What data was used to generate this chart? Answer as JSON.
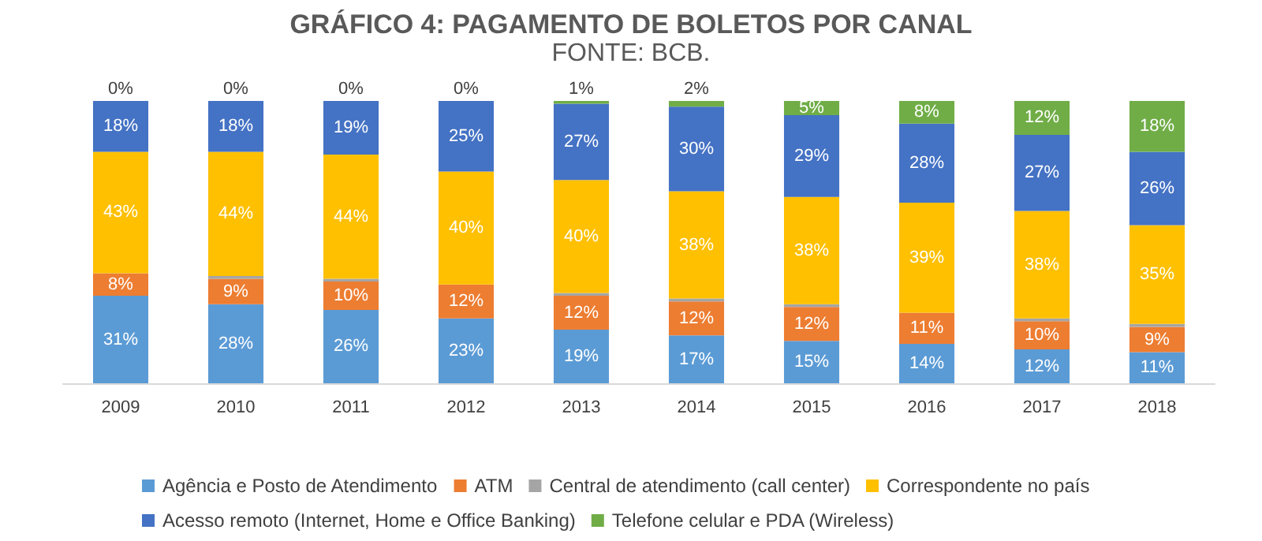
{
  "chart_data": {
    "type": "bar",
    "stacked": true,
    "title": "GRÁFICO 4: PAGAMENTO DE BOLETOS POR CANAL",
    "subtitle": "FONTE: BCB.",
    "categories": [
      "2009",
      "2010",
      "2011",
      "2012",
      "2013",
      "2014",
      "2015",
      "2016",
      "2017",
      "2018"
    ],
    "ylim": [
      0,
      100
    ],
    "tick_labels": "x",
    "grid": false,
    "legend": "bottom",
    "series": [
      {
        "name": "Agência e Posto de Atendimento",
        "color": "#5b9bd5",
        "values": [
          31,
          28,
          26,
          23,
          19,
          17,
          15,
          14,
          12,
          11
        ],
        "value_labels": [
          "31%",
          "28%",
          "26%",
          "23%",
          "19%",
          "17%",
          "15%",
          "14%",
          "12%",
          "11%"
        ]
      },
      {
        "name": "ATM",
        "color": "#ed7d31",
        "values": [
          8,
          9,
          10,
          12,
          12,
          12,
          12,
          11,
          10,
          9
        ],
        "value_labels": [
          "8%",
          "9%",
          "10%",
          "12%",
          "12%",
          "12%",
          "12%",
          "11%",
          "10%",
          "9%"
        ]
      },
      {
        "name": "Central de atendimento (call center)",
        "color": "#a5a5a5",
        "values": [
          0,
          1,
          1,
          0,
          1,
          1,
          1,
          0,
          1,
          1
        ],
        "value_labels": [
          null,
          null,
          null,
          null,
          null,
          null,
          null,
          null,
          null,
          null
        ]
      },
      {
        "name": "Correspondente no país",
        "color": "#ffc000",
        "values": [
          43,
          44,
          44,
          40,
          40,
          38,
          38,
          39,
          38,
          35
        ],
        "value_labels": [
          "43%",
          "44%",
          "44%",
          "40%",
          "40%",
          "38%",
          "38%",
          "39%",
          "38%",
          "35%"
        ]
      },
      {
        "name": "Acesso remoto (Internet, Home e Office Banking)",
        "color": "#4472c4",
        "values": [
          18,
          18,
          19,
          25,
          27,
          30,
          29,
          28,
          27,
          26
        ],
        "value_labels": [
          "18%",
          "18%",
          "19%",
          "25%",
          "27%",
          "30%",
          "29%",
          "28%",
          "27%",
          "26%"
        ]
      },
      {
        "name": "Telefone celular e PDA (Wireless)",
        "color": "#70ad47",
        "values": [
          0,
          0,
          0,
          0,
          1,
          2,
          5,
          8,
          12,
          18
        ],
        "value_labels": [
          "0%",
          "0%",
          "0%",
          "0%",
          "1%",
          "2%",
          "5%",
          "8%",
          "12%",
          "18%"
        ]
      }
    ]
  }
}
